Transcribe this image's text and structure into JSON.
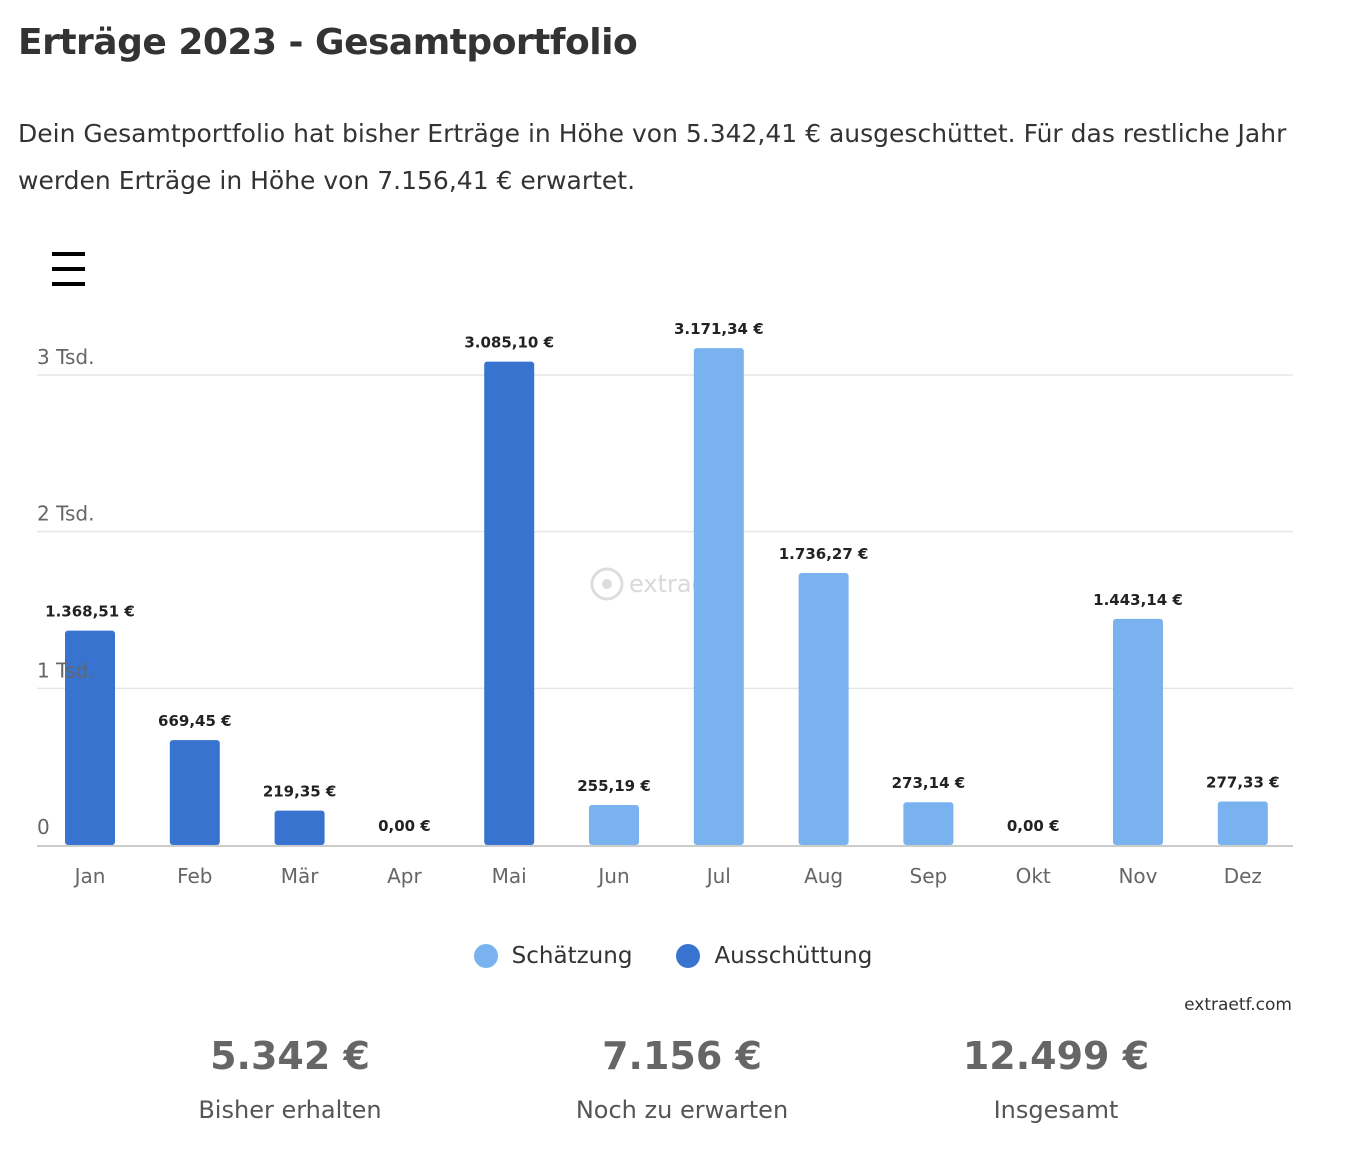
{
  "header": {
    "title": "Erträge 2023 - Gesamtportfolio",
    "intro": "Dein Gesamtportfolio hat bisher Erträge in Höhe von 5.342,41 € ausgeschüttet. Für das restliche Jahr werden Erträge in Höhe von 7.156,41 € erwartet."
  },
  "toolbar": {
    "menu_icon": "hamburger-menu-icon"
  },
  "chart_data": {
    "type": "bar",
    "categories": [
      "Jan",
      "Feb",
      "Mär",
      "Apr",
      "Mai",
      "Jun",
      "Jul",
      "Aug",
      "Sep",
      "Okt",
      "Nov",
      "Dez"
    ],
    "values": [
      1368.51,
      669.45,
      219.35,
      0.0,
      3085.1,
      255.19,
      3171.34,
      1736.27,
      273.14,
      0.0,
      1443.14,
      277.33
    ],
    "value_labels": [
      "1.368,51 €",
      "669,45 €",
      "219,35 €",
      "0,00 €",
      "3.085,10 €",
      "255,19 €",
      "3.171,34 €",
      "1.736,27 €",
      "273,14 €",
      "0,00 €",
      "1.443,14 €",
      "277,33 €"
    ],
    "bar_series": [
      "Ausschüttung",
      "Ausschüttung",
      "Ausschüttung",
      "Ausschüttung",
      "Ausschüttung",
      "Schätzung",
      "Schätzung",
      "Schätzung",
      "Schätzung",
      "Schätzung",
      "Schätzung",
      "Schätzung"
    ],
    "series": [
      {
        "name": "Schätzung",
        "color": "#7ab2f0"
      },
      {
        "name": "Ausschüttung",
        "color": "#3874cf"
      }
    ],
    "y_ticks": [
      {
        "value": 0,
        "label": "0"
      },
      {
        "value": 1000,
        "label": "1 Tsd."
      },
      {
        "value": 2000,
        "label": "2 Tsd."
      },
      {
        "value": 3000,
        "label": "3 Tsd."
      }
    ],
    "ylim": [
      0,
      3000
    ],
    "grid": true,
    "legend_position": "bottom",
    "watermark": "extraetf",
    "credit": "extraetf.com"
  },
  "summary": [
    {
      "value": "5.342 €",
      "label": "Bisher erhalten"
    },
    {
      "value": "7.156 €",
      "label": "Noch zu erwarten"
    },
    {
      "value": "12.499 €",
      "label": "Insgesamt"
    }
  ]
}
